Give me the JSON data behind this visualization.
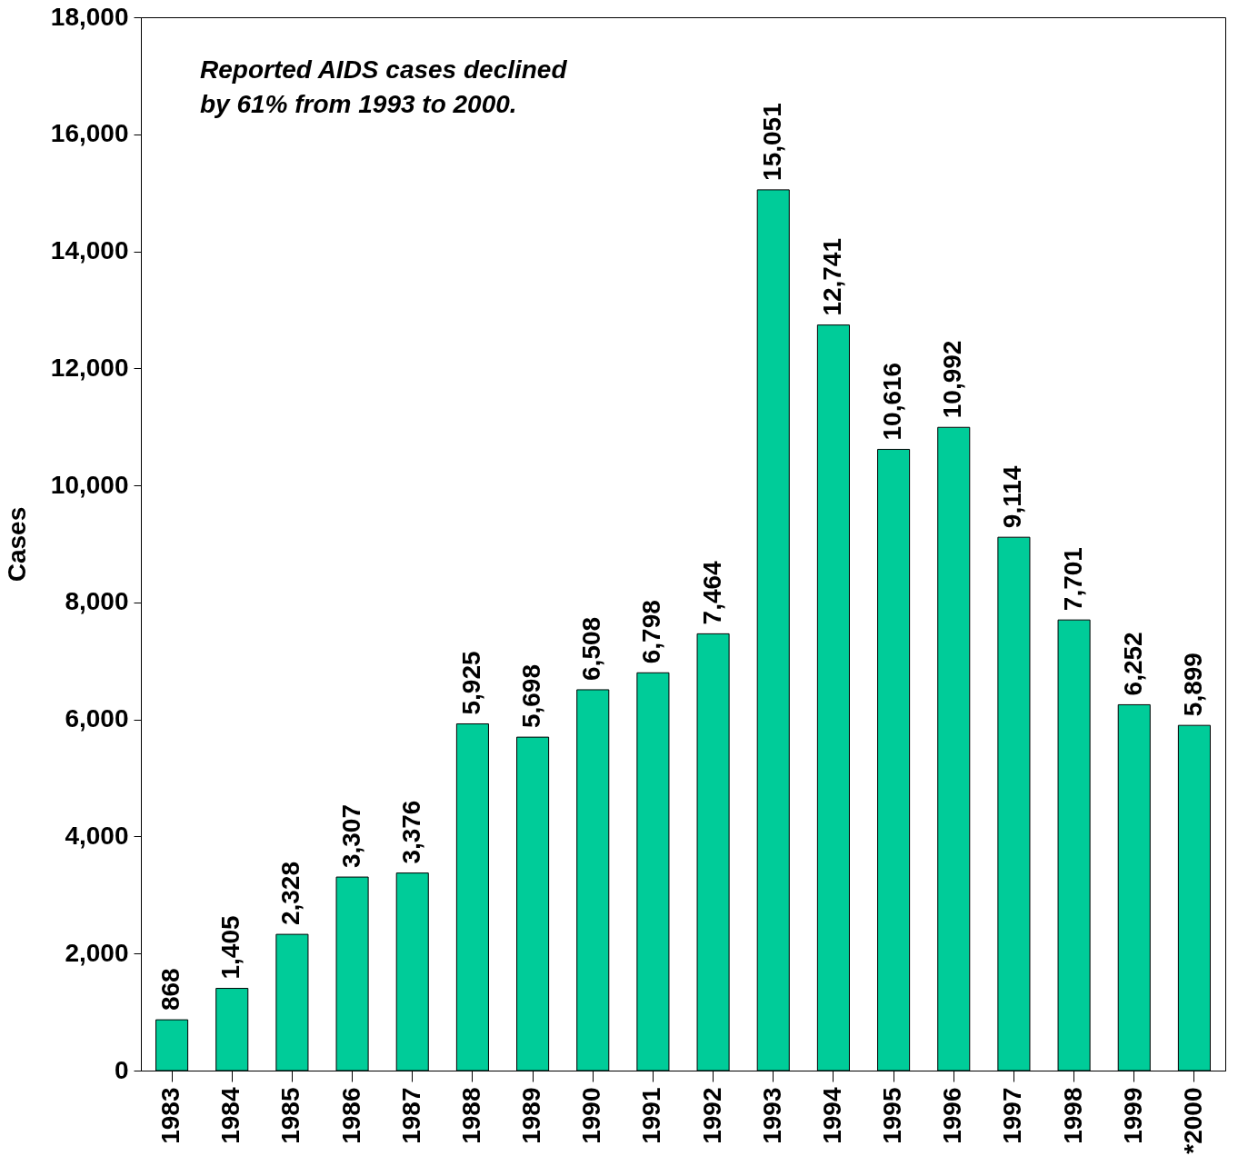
{
  "chart_data": {
    "type": "bar",
    "ylabel": "Cases",
    "categories": [
      "1983",
      "1984",
      "1985",
      "1986",
      "1987",
      "1988",
      "1989",
      "1990",
      "1991",
      "1992",
      "1993",
      "1994",
      "1995",
      "1996",
      "1997",
      "1998",
      "1999",
      "*2000"
    ],
    "values": [
      868,
      1405,
      2328,
      3307,
      3376,
      5925,
      5698,
      6508,
      6798,
      7464,
      15051,
      12741,
      10616,
      10992,
      9114,
      7701,
      6252,
      5899
    ],
    "value_labels": [
      "868",
      "1,405",
      "2,328",
      "3,307",
      "3,376",
      "5,925",
      "5,698",
      "6,508",
      "6,798",
      "7,464",
      "15,051",
      "12,741",
      "10,616",
      "10,992",
      "9,114",
      "7,701",
      "6,252",
      "5,899"
    ],
    "color": "#00cc99",
    "ylim": [
      0,
      18000
    ],
    "yticks": [
      0,
      {
        "value": 2000,
        "label": "2,000"
      },
      {
        "value": 4000,
        "label": "4,000"
      },
      {
        "value": 6000,
        "label": "6,000"
      },
      {
        "value": 8000,
        "label": "8,000"
      },
      {
        "value": 10000,
        "label": "10,000"
      },
      {
        "value": 12000,
        "label": "12,000"
      },
      {
        "value": 14000,
        "label": "14,000"
      },
      {
        "value": 16000,
        "label": "16,000"
      },
      {
        "value": 18000,
        "label": "18,000"
      }
    ],
    "grid": false,
    "annotations": [
      "Reported AIDS cases declined\nby 61% from 1993 to 2000."
    ]
  }
}
